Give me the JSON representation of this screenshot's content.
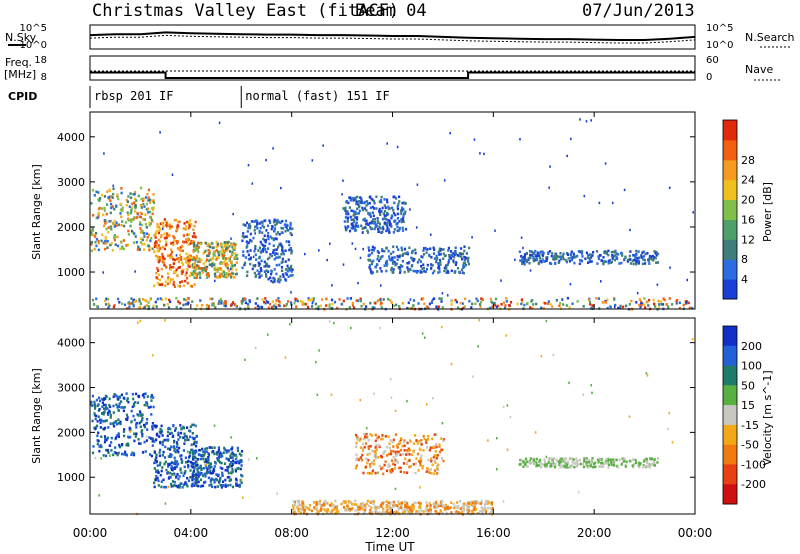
{
  "header": {
    "title": "Christmas Valley East (fitACF)",
    "beam": "Beam 04",
    "date": "07/Jun/2013"
  },
  "side_labels": {
    "nsky": "N.Sky",
    "nsearch": "N.Search",
    "freq_line1": "Freq.",
    "freq_line2": "[MHz]",
    "nave": "Nave",
    "cpid": "CPID"
  },
  "axis_labels": {
    "noise_left_top": "10^5",
    "noise_left_bottom": "10^0",
    "noise_right_top": "10^5",
    "noise_right_bottom": "10^0",
    "freq_left_top": "18",
    "freq_left_bottom": "8",
    "nave_right_top": "60",
    "nave_right_bottom": "0"
  },
  "cpid_labels": [
    {
      "text": "rbsp 201 IF",
      "start_hour": 0
    },
    {
      "text": "normal (fast) 151 IF",
      "start_hour": 6
    }
  ],
  "chart_data": [
    {
      "type": "heatmap",
      "name": "power",
      "title": "",
      "xlabel": "",
      "ylabel": "Slant Range [km]",
      "xlim": [
        0,
        24
      ],
      "ylim": [
        180,
        4550
      ],
      "yticks": [
        1000,
        2000,
        3000,
        4000
      ],
      "colorbar": {
        "label": "Power [dB]",
        "ticks": [
          "4",
          "8",
          "12",
          "16",
          "20",
          "24",
          "28"
        ],
        "colors": [
          "#1a3fd6",
          "#2a6de0",
          "#3f7d7a",
          "#4f9f6a",
          "#7fbf4a",
          "#f0c020",
          "#f79a20",
          "#f06010",
          "#e02a0a"
        ]
      },
      "features": [
        {
          "x": [
            0,
            2.5
          ],
          "y": [
            1500,
            2900
          ],
          "level": "mixed-high"
        },
        {
          "x": [
            2.5,
            4.2
          ],
          "y": [
            700,
            2200
          ],
          "level": "high"
        },
        {
          "x": [
            4.0,
            5.8
          ],
          "y": [
            900,
            1700
          ],
          "level": "mixed"
        },
        {
          "x": [
            6.0,
            8.0
          ],
          "y": [
            800,
            2200
          ],
          "level": "low"
        },
        {
          "x": [
            10.0,
            12.5
          ],
          "y": [
            1900,
            2700
          ],
          "level": "low"
        },
        {
          "x": [
            11.0,
            15.0
          ],
          "y": [
            1000,
            1600
          ],
          "level": "low"
        },
        {
          "x": [
            17.0,
            22.5
          ],
          "y": [
            1200,
            1500
          ],
          "level": "low"
        },
        {
          "x": [
            0,
            24
          ],
          "y": [
            200,
            450
          ],
          "level": "noise-band"
        }
      ]
    },
    {
      "type": "heatmap",
      "name": "velocity",
      "title": "",
      "xlabel": "Time UT",
      "ylabel": "Slant Range [km]",
      "xlim": [
        0,
        24
      ],
      "ylim": [
        180,
        4550
      ],
      "yticks": [
        1000,
        2000,
        3000,
        4000
      ],
      "xticks": [
        "00:00",
        "04:00",
        "08:00",
        "12:00",
        "16:00",
        "20:00",
        "00:00"
      ],
      "colorbar": {
        "label": "Velocity [m s^-1]",
        "ticks": [
          "200",
          "100",
          "50",
          "15",
          "-15",
          "-50",
          "-100",
          "-200"
        ],
        "colors": [
          "#1030c8",
          "#2060d8",
          "#1e7a6a",
          "#58b040",
          "#c8c8c0",
          "#f4a818",
          "#f07a10",
          "#e84010",
          "#d01010"
        ]
      },
      "features": [
        {
          "x": [
            0,
            2.5
          ],
          "y": [
            1500,
            2900
          ],
          "level": "toward"
        },
        {
          "x": [
            2.5,
            4.2
          ],
          "y": [
            800,
            2200
          ],
          "level": "toward"
        },
        {
          "x": [
            4.0,
            6.0
          ],
          "y": [
            800,
            1700
          ],
          "level": "toward"
        },
        {
          "x": [
            10.5,
            14.0
          ],
          "y": [
            1100,
            2000
          ],
          "level": "away"
        },
        {
          "x": [
            17.0,
            22.5
          ],
          "y": [
            1250,
            1450
          ],
          "level": "near-zero"
        },
        {
          "x": [
            8.0,
            16.0
          ],
          "y": [
            200,
            500
          ],
          "level": "away-band"
        }
      ]
    }
  ],
  "noise_series": {
    "nsky_level": [
      2.2,
      2.4,
      2.4,
      2.8,
      2.6,
      2.5,
      2.4,
      2.3,
      2.3,
      2.2,
      2.2,
      2.1,
      2.0,
      2.0,
      1.8,
      1.6,
      1.5,
      1.4,
      1.3,
      1.3,
      1.2,
      1.1,
      1.1,
      1.4,
      1.8
    ]
  },
  "freq_series": {
    "segments": [
      {
        "start": 0,
        "end": 3.0,
        "value": 10.5
      },
      {
        "start": 3.0,
        "end": 15.0,
        "value": 8.0
      },
      {
        "start": 15.0,
        "end": 24,
        "value": 10.5
      }
    ]
  }
}
